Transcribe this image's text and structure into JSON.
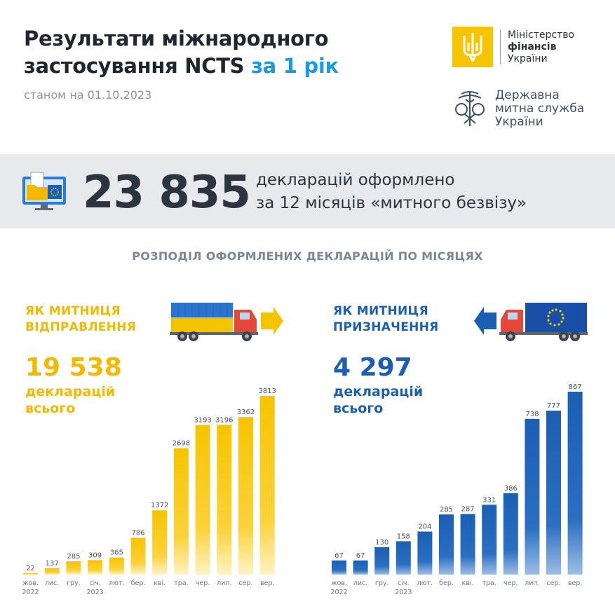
{
  "header": {
    "title_line1": "Результати міжнародного",
    "title_line2_a": "застосування NCTS ",
    "title_line2_b": "за 1 рік",
    "subtitle": "станом на 01.10.2023"
  },
  "logos": {
    "minfin": {
      "line1": "Міністерство",
      "line2": "фінансів",
      "line3": "України"
    },
    "customs": {
      "line1": "Державна",
      "line2": "митна служба",
      "line3": "України"
    }
  },
  "banner": {
    "number": "23 835",
    "text_line1": "декларацій оформлено",
    "text_line2": "за 12 місяців «митного безвізу»"
  },
  "section_title": "РОЗПОДІЛ ОФОРМЛЕНИХ ДЕКЛАРАЦІЙ ПО МІСЯЦЯХ",
  "left_panel": {
    "title_line1": "ЯК МИТНИЦЯ",
    "title_line2": "ВІДПРАВЛЕННЯ",
    "total": "19 538",
    "desc_line1": "декларацій",
    "desc_line2": "всього"
  },
  "right_panel": {
    "title_line1": "ЯК МИТНИЦЯ",
    "title_line2": "ПРИЗНАЧЕННЯ",
    "total": "4 297",
    "desc_line1": "декларацій",
    "desc_line2": "всього"
  },
  "colors": {
    "yellow": "#f5b800",
    "blue": "#1a5fb4",
    "accent": "#1a9ae0"
  },
  "chart_data": [
    {
      "type": "bar",
      "categories": [
        "жов.",
        "лис.",
        "гру.",
        "січ.",
        "лют.",
        "бер.",
        "кві.",
        "тра.",
        "чер.",
        "лип.",
        "сер.",
        "вер."
      ],
      "year_labels": {
        "0": "2022",
        "3": "2023"
      },
      "values": [
        22,
        137,
        285,
        309,
        365,
        786,
        1372,
        2698,
        3193,
        3196,
        3362,
        3813
      ],
      "ylim": [
        0,
        3813
      ],
      "color": "#f5b800"
    },
    {
      "type": "bar",
      "categories": [
        "жов.",
        "лис.",
        "гру.",
        "січ.",
        "лют.",
        "бер.",
        "кві.",
        "тра.",
        "чер.",
        "лип.",
        "сер.",
        "вер."
      ],
      "year_labels": {
        "0": "2022",
        "3": "2023"
      },
      "values": [
        67,
        67,
        130,
        158,
        204,
        285,
        287,
        331,
        386,
        738,
        777,
        867
      ],
      "ylim": [
        0,
        867
      ],
      "color": "#1a5fb4"
    }
  ]
}
